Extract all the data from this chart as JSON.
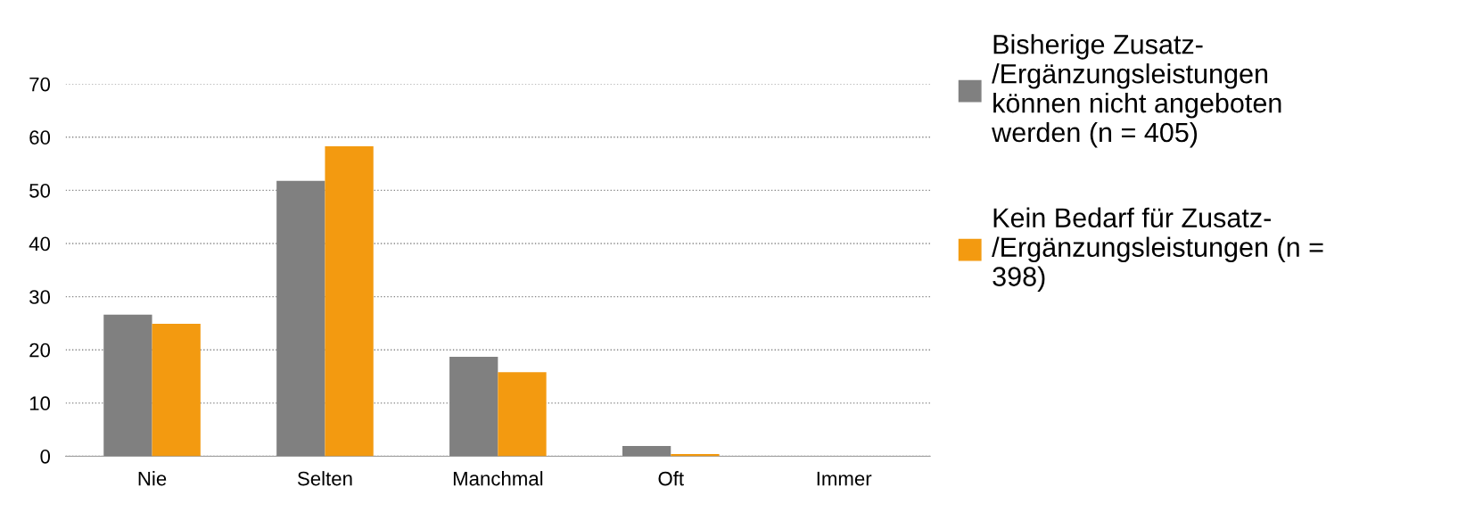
{
  "chart_data": {
    "type": "bar",
    "categories": [
      "Nie",
      "Selten",
      "Manchmal",
      "Oft",
      "Immer"
    ],
    "series": [
      {
        "name": "Bisherige Zusatz-\n/Ergänzungsleistungen\nkönnen nicht angeboten\nwerden (n = 405)",
        "color": "#808080",
        "values": [
          26.6,
          51.8,
          18.7,
          1.9,
          0
        ]
      },
      {
        "name": "Kein Bedarf für Zusatz-\n/Ergänzungsleistungen (n =\n398)",
        "color": "#f39a10",
        "values": [
          24.9,
          58.3,
          15.8,
          0.4,
          0
        ]
      }
    ],
    "ylim": [
      0,
      70
    ],
    "yticks": [
      0,
      10,
      20,
      30,
      40,
      50,
      60,
      70
    ],
    "grid": "y",
    "legend": "right"
  }
}
